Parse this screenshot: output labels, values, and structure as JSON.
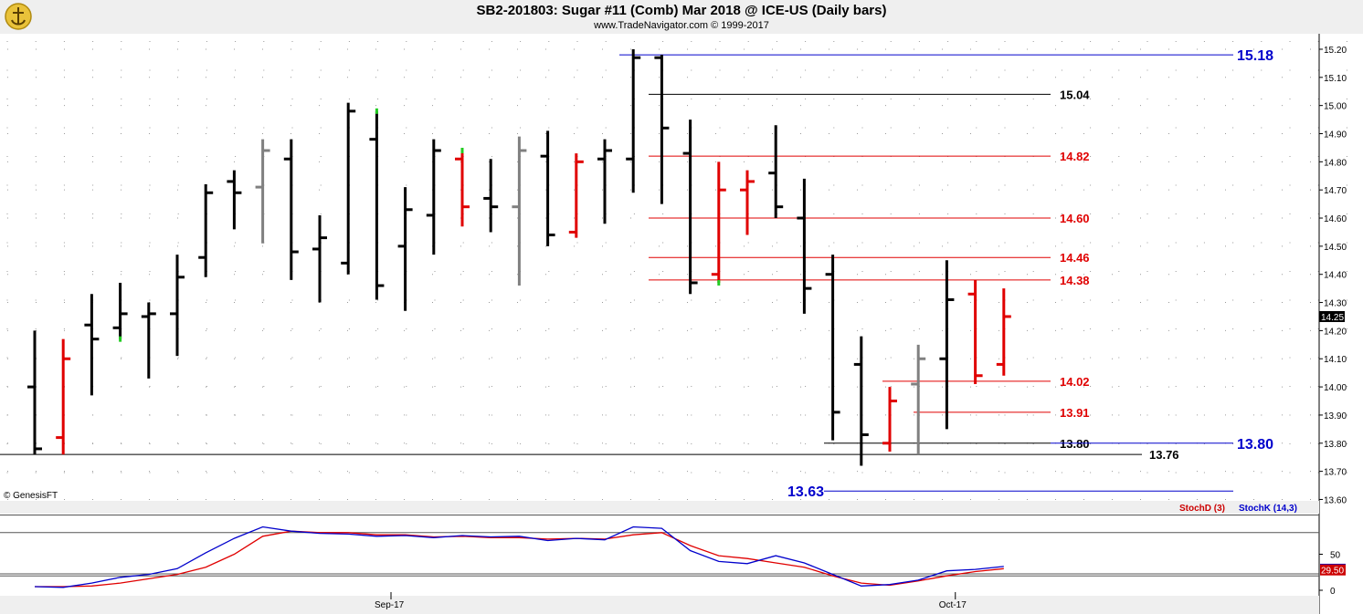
{
  "header": {
    "title": "SB2-201803:  Sugar #11 (Comb) Mar 2018 @ ICE-US  (Daily bars)",
    "subtitle": "www.TradeNavigator.com © 1999-2017"
  },
  "copyright": "© GenesisFT",
  "colors": {
    "up": "#000000",
    "down": "#e00000",
    "neutral": "#808080",
    "limit": "#22cc22",
    "blue": "#0000cc",
    "stochD": "#cc0000",
    "stochK": "#0000cc"
  },
  "chart_data": [
    {
      "type": "ohlc",
      "ylim": [
        13.6,
        15.25
      ],
      "yticks": [
        "15.20",
        "15.10",
        "15.00",
        "14.90",
        "14.80",
        "14.70",
        "14.60",
        "14.50",
        "14.40",
        "14.30",
        "14.20",
        "14.10",
        "14.00",
        "13.90",
        "13.80",
        "13.70",
        "13.60"
      ],
      "last_price": "14.25",
      "bars": [
        {
          "o": 14.0,
          "h": 14.2,
          "l": 13.76,
          "c": 13.78,
          "col": "black"
        },
        {
          "o": 13.82,
          "h": 14.17,
          "l": 13.76,
          "c": 14.1,
          "col": "red"
        },
        {
          "o": 14.22,
          "h": 14.33,
          "l": 13.97,
          "c": 14.17,
          "col": "black"
        },
        {
          "o": 14.21,
          "h": 14.37,
          "l": 14.17,
          "c": 14.26,
          "col": "black"
        },
        {
          "o": 14.25,
          "h": 14.3,
          "l": 14.03,
          "c": 14.26,
          "col": "black"
        },
        {
          "o": 14.26,
          "h": 14.47,
          "l": 14.11,
          "c": 14.39,
          "col": "black"
        },
        {
          "o": 14.46,
          "h": 14.72,
          "l": 14.39,
          "c": 14.69,
          "col": "black"
        },
        {
          "o": 14.73,
          "h": 14.77,
          "l": 14.56,
          "c": 14.69,
          "col": "black"
        },
        {
          "o": 14.71,
          "h": 14.88,
          "l": 14.51,
          "c": 14.84,
          "col": "gray"
        },
        {
          "o": 14.81,
          "h": 14.88,
          "l": 14.38,
          "c": 14.48,
          "col": "black"
        },
        {
          "o": 14.49,
          "h": 14.61,
          "l": 14.3,
          "c": 14.53,
          "col": "black"
        },
        {
          "o": 14.44,
          "h": 15.01,
          "l": 14.4,
          "c": 14.98,
          "col": "black"
        },
        {
          "o": 14.88,
          "h": 14.98,
          "l": 14.31,
          "c": 14.36,
          "col": "black"
        },
        {
          "o": 14.5,
          "h": 14.71,
          "l": 14.27,
          "c": 14.63,
          "col": "black"
        },
        {
          "o": 14.61,
          "h": 14.88,
          "l": 14.47,
          "c": 14.84,
          "col": "black"
        },
        {
          "o": 14.81,
          "h": 14.84,
          "l": 14.57,
          "c": 14.64,
          "col": "red"
        },
        {
          "o": 14.67,
          "h": 14.81,
          "l": 14.55,
          "c": 14.64,
          "col": "black"
        },
        {
          "o": 14.64,
          "h": 14.89,
          "l": 14.36,
          "c": 14.84,
          "col": "gray"
        },
        {
          "o": 14.82,
          "h": 14.91,
          "l": 14.5,
          "c": 14.54,
          "col": "black"
        },
        {
          "o": 14.55,
          "h": 14.83,
          "l": 14.53,
          "c": 14.8,
          "col": "red"
        },
        {
          "o": 14.81,
          "h": 14.88,
          "l": 14.58,
          "c": 14.84,
          "col": "black"
        },
        {
          "o": 14.81,
          "h": 15.2,
          "l": 14.69,
          "c": 15.17,
          "col": "black"
        },
        {
          "o": 15.17,
          "h": 15.18,
          "l": 14.65,
          "c": 14.92,
          "col": "black"
        },
        {
          "o": 14.83,
          "h": 14.95,
          "l": 14.33,
          "c": 14.37,
          "col": "black"
        },
        {
          "o": 14.4,
          "h": 14.8,
          "l": 14.37,
          "c": 14.7,
          "col": "red"
        },
        {
          "o": 14.7,
          "h": 14.77,
          "l": 14.54,
          "c": 14.73,
          "col": "red"
        },
        {
          "o": 14.76,
          "h": 14.93,
          "l": 14.6,
          "c": 14.64,
          "col": "black"
        },
        {
          "o": 14.6,
          "h": 14.74,
          "l": 14.26,
          "c": 14.35,
          "col": "black"
        },
        {
          "o": 14.4,
          "h": 14.47,
          "l": 13.81,
          "c": 13.91,
          "col": "black"
        },
        {
          "o": 14.08,
          "h": 14.18,
          "l": 13.72,
          "c": 13.83,
          "col": "black"
        },
        {
          "o": 13.8,
          "h": 14.0,
          "l": 13.77,
          "c": 13.95,
          "col": "red"
        },
        {
          "o": 14.01,
          "h": 14.15,
          "l": 13.76,
          "c": 14.1,
          "col": "gray"
        },
        {
          "o": 14.1,
          "h": 14.45,
          "l": 13.85,
          "c": 14.31,
          "col": "black"
        },
        {
          "o": 14.33,
          "h": 14.38,
          "l": 14.01,
          "c": 14.04,
          "col": "red"
        },
        {
          "o": 14.08,
          "h": 14.35,
          "l": 14.04,
          "c": 14.25,
          "col": "red"
        }
      ],
      "levels": [
        {
          "label": "15.18",
          "value": 15.18,
          "color": "blue"
        },
        {
          "label": "15.04",
          "value": 15.04,
          "color": "black"
        },
        {
          "label": "14.82",
          "value": 14.82,
          "color": "red"
        },
        {
          "label": "14.60",
          "value": 14.6,
          "color": "red"
        },
        {
          "label": "14.46",
          "value": 14.46,
          "color": "red"
        },
        {
          "label": "14.38",
          "value": 14.38,
          "color": "red"
        },
        {
          "label": "14.02",
          "value": 14.02,
          "color": "red"
        },
        {
          "label": "13.91",
          "value": 13.91,
          "color": "red"
        },
        {
          "label": "13.80",
          "value": 13.8,
          "color": "black"
        },
        {
          "label": "13.80",
          "value": 13.8,
          "color": "blue"
        },
        {
          "label": "13.76",
          "value": 13.76,
          "color": "black"
        },
        {
          "label": "13.63",
          "value": 13.63,
          "color": "blue"
        }
      ],
      "x_tick_labels": [
        "Sep-17",
        "Oct-17"
      ]
    },
    {
      "type": "line",
      "ylim": [
        0,
        100
      ],
      "yticks": [
        "50",
        "0"
      ],
      "legend": [
        "StochD (3)",
        "StochK (14,3)"
      ],
      "values_label": [
        "33",
        "29.50"
      ],
      "series": [
        {
          "name": "StochD (3)",
          "color": "red",
          "values": [
            5,
            5,
            6,
            10,
            16,
            22,
            32,
            50,
            75,
            82,
            80,
            80,
            77,
            77,
            74,
            75,
            73,
            73,
            71,
            72,
            71,
            77,
            80,
            62,
            48,
            44,
            38,
            32,
            20,
            10,
            7,
            13,
            20,
            26,
            30
          ]
        },
        {
          "name": "StochK (14,3)",
          "color": "blue",
          "values": [
            5,
            4,
            10,
            18,
            22,
            30,
            52,
            72,
            88,
            82,
            79,
            78,
            75,
            76,
            73,
            76,
            74,
            75,
            69,
            72,
            70,
            88,
            86,
            55,
            40,
            37,
            48,
            38,
            22,
            6,
            8,
            14,
            27,
            29,
            33
          ]
        }
      ]
    }
  ]
}
